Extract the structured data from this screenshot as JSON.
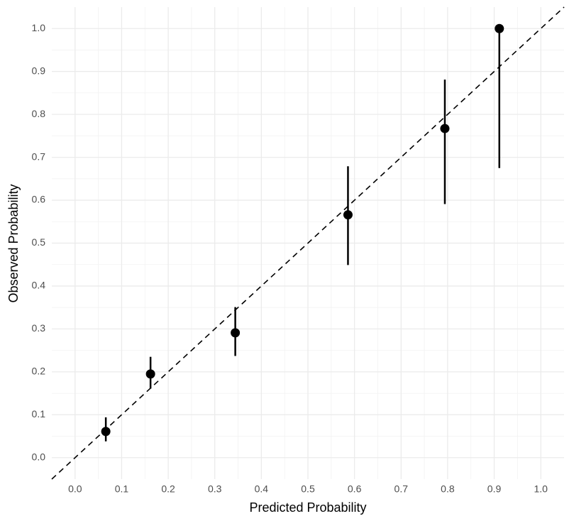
{
  "chart_data": {
    "type": "scatter",
    "x_label": "Predicted Probability",
    "y_label": "Observed Probability",
    "x": [
      0.066,
      0.162,
      0.344,
      0.586,
      0.794,
      0.911
    ],
    "values": [
      0.061,
      0.195,
      0.291,
      0.566,
      0.767,
      1.0
    ],
    "lower": [
      0.038,
      0.161,
      0.237,
      0.449,
      0.591,
      0.675
    ],
    "upper": [
      0.094,
      0.235,
      0.351,
      0.679,
      0.881,
      1.0
    ],
    "color": "#000000",
    "reference_line": true,
    "grid": true,
    "minor_grid": true,
    "xlim": [
      -0.05,
      1.05
    ],
    "ylim": [
      -0.05,
      1.05
    ],
    "xticks": [
      {
        "value": 0,
        "label": "0.0"
      },
      0.1,
      0.2,
      0.3,
      0.4,
      0.5,
      0.6,
      0.7,
      0.8,
      0.9,
      {
        "value": 1,
        "label": "1.0"
      }
    ],
    "yticks": [
      {
        "value": 0,
        "label": "0.0"
      },
      0.1,
      0.2,
      0.3,
      0.4,
      0.5,
      0.6,
      0.7,
      0.8,
      0.9,
      {
        "value": 1,
        "label": "1.0"
      }
    ]
  }
}
